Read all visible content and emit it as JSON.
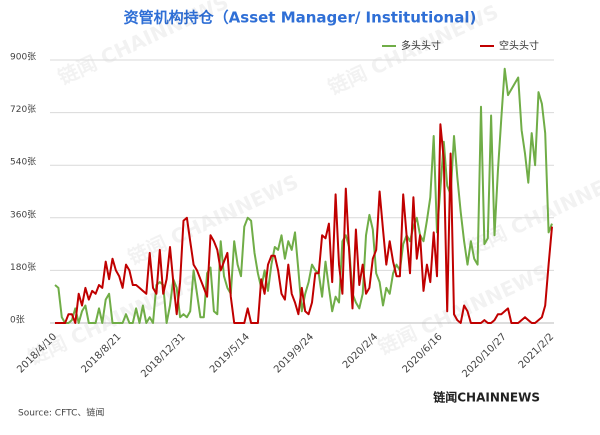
{
  "chart_data": {
    "type": "line",
    "title": "资管机构持仓（Asset Manager/ Institutional)",
    "source": "Source: CFTC、链闻",
    "watermark": "链闻 CHAINNEWS",
    "logo": "链闻CHAINNEWS",
    "categories": [
      "2018/4/10",
      null,
      null,
      null,
      null,
      null,
      null,
      null,
      null,
      null,
      null,
      null,
      null,
      null,
      null,
      null,
      null,
      null,
      null,
      "2018/8/21",
      null,
      null,
      null,
      null,
      null,
      null,
      null,
      null,
      null,
      null,
      null,
      null,
      null,
      null,
      null,
      null,
      null,
      null,
      "2018/12/31",
      null,
      null,
      null,
      null,
      null,
      null,
      null,
      null,
      null,
      null,
      null,
      null,
      null,
      null,
      null,
      null,
      null,
      null,
      "2019/5/14",
      null,
      null,
      null,
      null,
      null,
      null,
      null,
      null,
      null,
      null,
      null,
      null,
      null,
      null,
      null,
      null,
      null,
      null,
      "2019/9/24",
      null,
      null,
      null,
      null,
      null,
      null,
      null,
      null,
      null,
      null,
      null,
      null,
      null,
      null,
      null,
      null,
      null,
      null,
      "2020/2/4",
      null,
      null,
      null,
      null,
      null,
      null,
      null,
      null,
      null,
      null,
      null,
      null,
      null,
      null,
      null,
      null,
      null,
      null,
      "2020/6/16",
      null,
      null,
      null,
      null,
      null,
      null,
      null,
      null,
      null,
      null,
      null,
      null,
      null,
      null,
      null,
      null,
      null,
      null,
      "2020/10/27",
      null,
      null,
      null,
      null,
      null,
      null,
      null,
      null,
      null,
      null,
      null,
      null,
      null,
      "2021/2/2"
    ],
    "series": [
      {
        "name": "多头头寸",
        "color": "#70ad47",
        "values": [
          130,
          120,
          20,
          0,
          0,
          10,
          50,
          0,
          40,
          60,
          0,
          0,
          0,
          50,
          0,
          80,
          100,
          0,
          0,
          0,
          0,
          30,
          0,
          0,
          50,
          0,
          60,
          0,
          20,
          0,
          130,
          140,
          130,
          0,
          60,
          150,
          120,
          20,
          30,
          20,
          40,
          180,
          100,
          20,
          20,
          170,
          190,
          40,
          30,
          280,
          160,
          120,
          100,
          280,
          200,
          160,
          330,
          360,
          350,
          240,
          170,
          120,
          180,
          110,
          200,
          260,
          250,
          300,
          220,
          280,
          250,
          310,
          180,
          40,
          100,
          140,
          200,
          180,
          170,
          90,
          210,
          120,
          40,
          90,
          70,
          280,
          300,
          260,
          100,
          70,
          50,
          100,
          300,
          370,
          320,
          170,
          140,
          60,
          120,
          100,
          170,
          200,
          180,
          270,
          300,
          280,
          330,
          360,
          300,
          280,
          350,
          430,
          640,
          310,
          460,
          620,
          470,
          440,
          640,
          500,
          380,
          280,
          200,
          280,
          220,
          200,
          740,
          270,
          290,
          710,
          300,
          520,
          700,
          870,
          780,
          800,
          820,
          840,
          660,
          580,
          480,
          650,
          540,
          790,
          750,
          650,
          310,
          340
        ]
      },
      {
        "name": "空头头寸",
        "color": "#c00000",
        "values": [
          0,
          0,
          0,
          0,
          30,
          30,
          0,
          100,
          60,
          120,
          80,
          110,
          100,
          130,
          120,
          210,
          150,
          220,
          180,
          160,
          120,
          200,
          180,
          130,
          130,
          120,
          110,
          100,
          240,
          120,
          100,
          250,
          100,
          150,
          260,
          140,
          30,
          140,
          350,
          360,
          280,
          200,
          180,
          150,
          120,
          90,
          300,
          280,
          250,
          180,
          210,
          240,
          90,
          0,
          0,
          0,
          0,
          50,
          0,
          0,
          0,
          150,
          100,
          200,
          230,
          230,
          180,
          100,
          80,
          200,
          100,
          70,
          30,
          120,
          40,
          30,
          70,
          170,
          170,
          300,
          290,
          340,
          140,
          440,
          200,
          100,
          460,
          250,
          50,
          320,
          130,
          200,
          100,
          120,
          220,
          250,
          450,
          320,
          200,
          280,
          210,
          160,
          160,
          440,
          300,
          170,
          430,
          220,
          300,
          110,
          200,
          140,
          310,
          160,
          680,
          560,
          40,
          580,
          30,
          10,
          0,
          60,
          40,
          0,
          0,
          0,
          0,
          10,
          0,
          0,
          10,
          30,
          30,
          40,
          50,
          0,
          0,
          0,
          10,
          20,
          10,
          0,
          0,
          10,
          20,
          60,
          200,
          330
        ]
      }
    ],
    "ylim": [
      0,
      900
    ],
    "yticks": [
      {
        "value": 0,
        "label": "0张"
      },
      {
        "value": 180,
        "label": "180张"
      },
      {
        "value": 360,
        "label": "360张"
      },
      {
        "value": 540,
        "label": "540张"
      },
      {
        "value": 720,
        "label": "720张"
      },
      {
        "value": 900,
        "label": "900张"
      }
    ],
    "grid": true
  }
}
